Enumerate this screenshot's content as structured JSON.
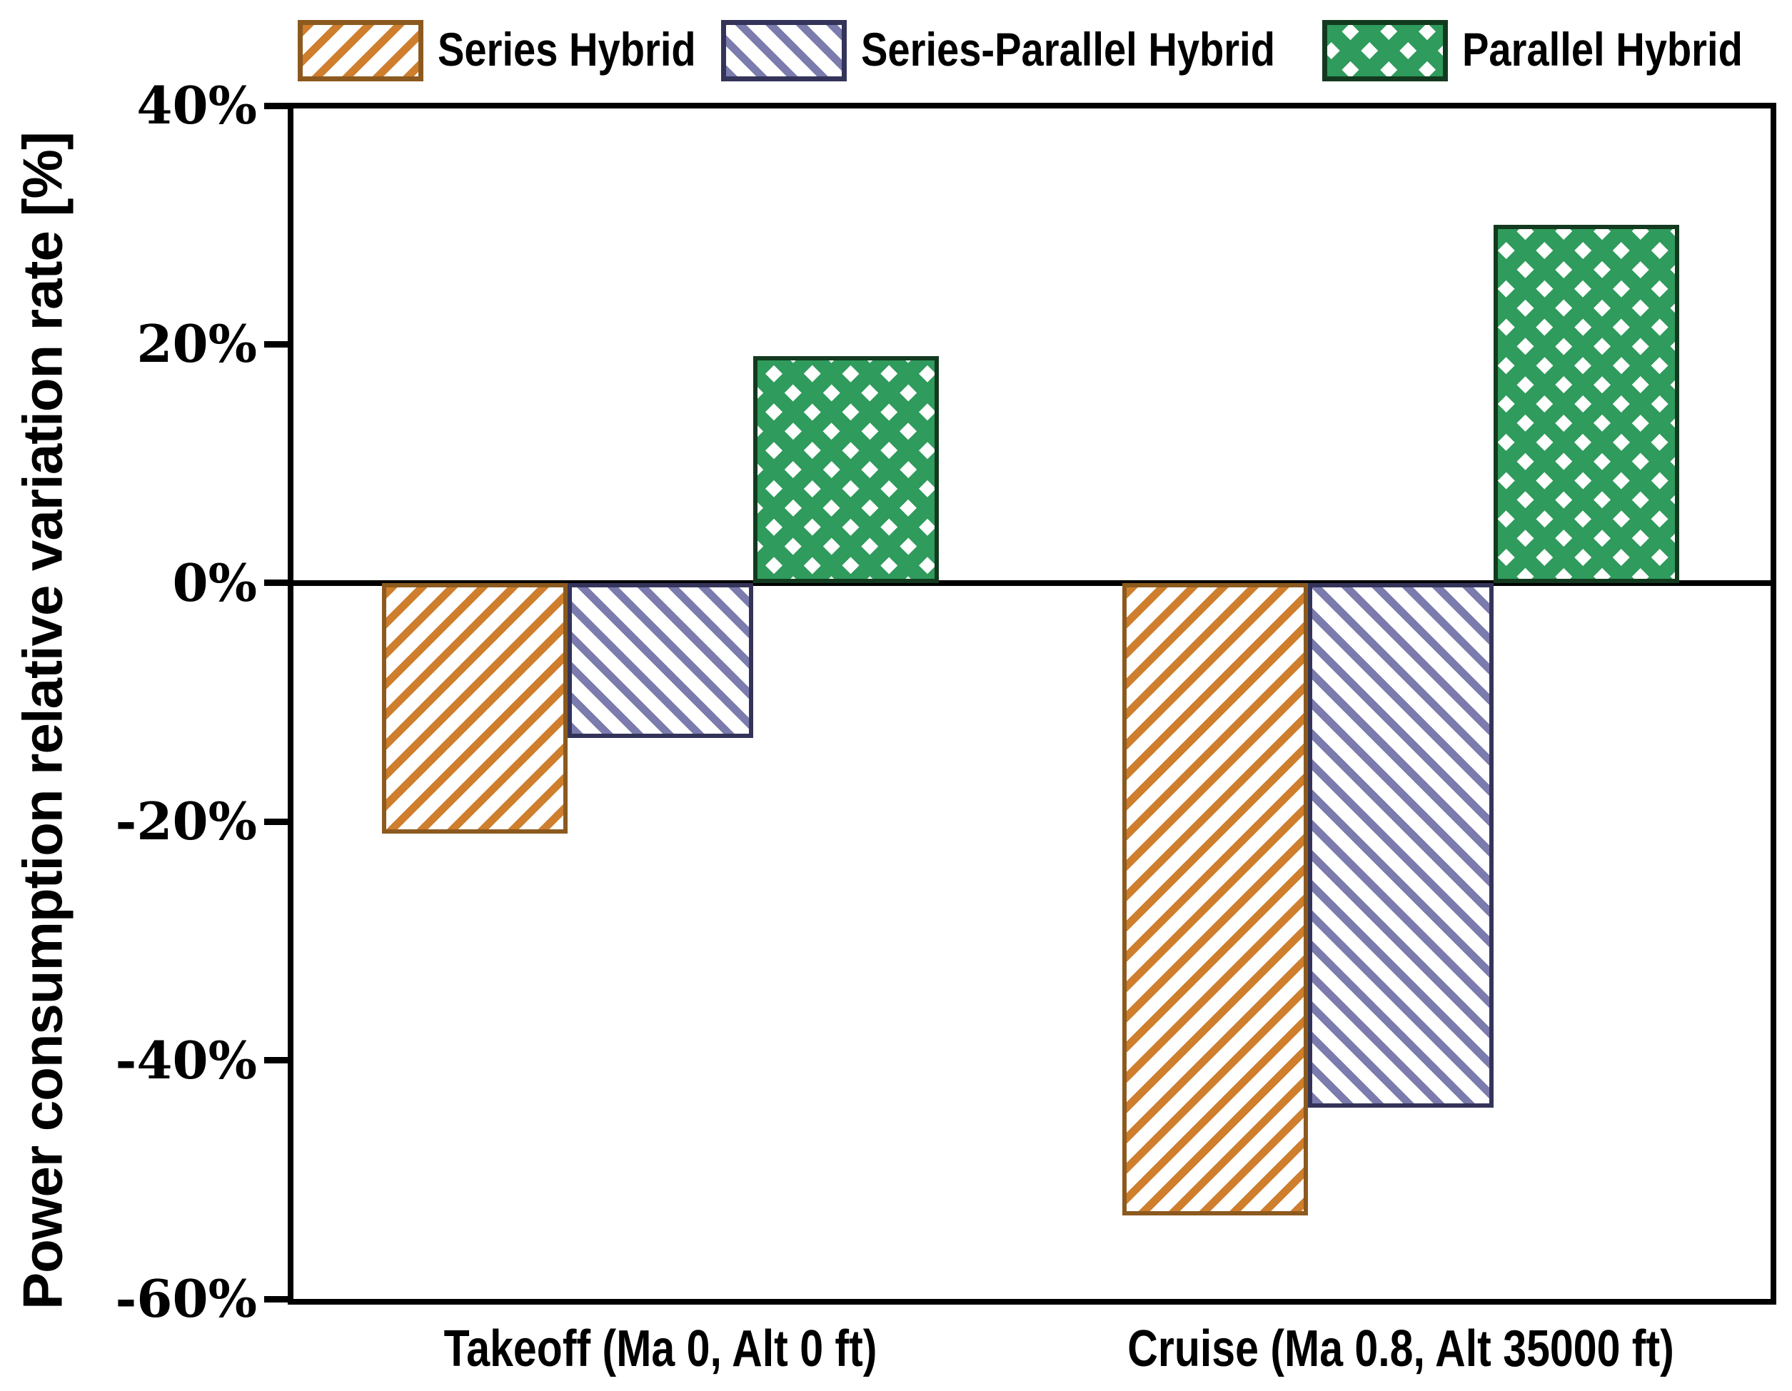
{
  "figure": {
    "background": "#ffffff",
    "axis_color": "#000000",
    "text_color": "#000000"
  },
  "chart_data": {
    "type": "bar",
    "title": "",
    "xlabel": "",
    "ylabel": "Power consumption relative variation rate [%]",
    "ylim": [
      -60,
      40
    ],
    "grid": false,
    "zero_line": true,
    "legend_position": "top",
    "yticks": [
      {
        "value": 40,
        "label": "40%"
      },
      {
        "value": 20,
        "label": "20%"
      },
      {
        "value": 0,
        "label": "0%"
      },
      {
        "value": -20,
        "label": "-20%"
      },
      {
        "value": -40,
        "label": "-40%"
      },
      {
        "value": -60,
        "label": "-60%"
      }
    ],
    "categories": [
      "Takeoff (Ma 0, Alt 0 ft)",
      "Cruise (Ma 0.8, Alt 35000 ft)"
    ],
    "series": [
      {
        "name": "Series Hybrid",
        "pattern": "diagonal-up",
        "color": "#CE7E2D",
        "border_color": "#8C5A1F",
        "values": [
          -21,
          -53
        ]
      },
      {
        "name": "Series-Parallel Hybrid",
        "pattern": "diagonal-down",
        "color": "#7B7BAD",
        "border_color": "#34345A",
        "values": [
          -13,
          -44
        ]
      },
      {
        "name": "Parallel Hybrid",
        "pattern": "crosshatch",
        "color": "#2F9B5C",
        "border_color": "#133A1F",
        "values": [
          19,
          30
        ]
      }
    ]
  }
}
